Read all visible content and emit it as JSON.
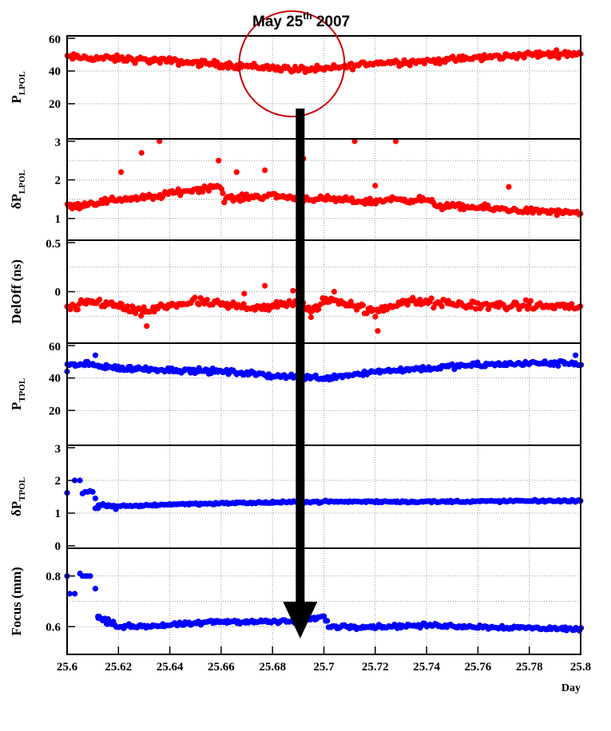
{
  "title": {
    "main": "May 25",
    "superscript": "th",
    "year": " 2007"
  },
  "chart_data": {
    "type": "scatter",
    "x_label": "Day",
    "x_range": [
      25.6,
      25.8
    ],
    "x_ticks": [
      "25.6",
      "25.62",
      "25.64",
      "25.66",
      "25.68",
      "25.7",
      "25.72",
      "25.74",
      "25.76",
      "25.78",
      "25.8"
    ],
    "highlight_marker_x": 25.69,
    "colors": {
      "lpol": "#ff0000",
      "tpol": "#0000ff",
      "arrow": "#000000",
      "circle": "#cc0000"
    },
    "grid": true,
    "panels": [
      {
        "name": "P_LPOL",
        "ylabel": "P",
        "ylabel_sub": "LPOL",
        "ylim": [
          0,
          60
        ],
        "yticks": [
          {
            "v": 20,
            "label": "20"
          },
          {
            "v": 40,
            "label": "40"
          },
          {
            "v": 60,
            "label": "60"
          }
        ],
        "grid_y": [
          20,
          40
        ],
        "color": "#ff0000",
        "trend": [
          [
            25.6,
            48.5
          ],
          [
            25.62,
            47.5
          ],
          [
            25.64,
            46
          ],
          [
            25.66,
            44
          ],
          [
            25.68,
            42
          ],
          [
            25.69,
            41
          ],
          [
            25.7,
            41
          ],
          [
            25.72,
            45
          ],
          [
            25.74,
            46
          ],
          [
            25.76,
            48
          ],
          [
            25.78,
            50
          ],
          [
            25.8,
            51
          ]
        ],
        "noise": 1.5,
        "outliers": []
      },
      {
        "name": "dP_LPOL",
        "ylabel": "δP",
        "ylabel_sub": "LPOL",
        "ylim": [
          0.5,
          3
        ],
        "yticks": [
          {
            "v": 1,
            "label": "1"
          },
          {
            "v": 2,
            "label": "2"
          },
          {
            "v": 3,
            "label": "3"
          }
        ],
        "grid_y": [
          1,
          1.5,
          2,
          2.5
        ],
        "color": "#ff0000",
        "trend": [
          [
            25.6,
            1.3
          ],
          [
            25.62,
            1.5
          ],
          [
            25.634,
            1.55
          ],
          [
            25.64,
            1.65
          ],
          [
            25.66,
            1.85
          ],
          [
            25.661,
            1.5
          ],
          [
            25.68,
            1.6
          ],
          [
            25.69,
            1.52
          ],
          [
            25.7,
            1.5
          ],
          [
            25.72,
            1.43
          ],
          [
            25.725,
            1.5
          ],
          [
            25.74,
            1.48
          ],
          [
            25.745,
            1.32
          ],
          [
            25.76,
            1.28
          ],
          [
            25.78,
            1.2
          ],
          [
            25.8,
            1.12
          ]
        ],
        "noise": 0.06,
        "outliers": [
          [
            25.621,
            2.2
          ],
          [
            25.629,
            2.7
          ],
          [
            25.636,
            3.0
          ],
          [
            25.659,
            2.5
          ],
          [
            25.666,
            2.2
          ],
          [
            25.677,
            2.25
          ],
          [
            25.692,
            2.55
          ],
          [
            25.712,
            3.0
          ],
          [
            25.72,
            1.85
          ],
          [
            25.728,
            3.0
          ],
          [
            25.772,
            1.82
          ]
        ]
      },
      {
        "name": "DelOff",
        "ylabel": "DelOff (ns)",
        "ylabel_sub": "",
        "ylim": [
          -0.5,
          0.5
        ],
        "yticks": [
          {
            "v": 0,
            "label": "0"
          },
          {
            "v": 0.5,
            "label": "0.5"
          }
        ],
        "grid_y": [
          -0.25,
          0,
          0.25
        ],
        "color": "#ff0000",
        "trend": [
          [
            25.6,
            -0.18
          ],
          [
            25.61,
            -0.1
          ],
          [
            25.62,
            -0.14
          ],
          [
            25.628,
            -0.22
          ],
          [
            25.64,
            -0.14
          ],
          [
            25.65,
            -0.1
          ],
          [
            25.66,
            -0.14
          ],
          [
            25.68,
            -0.16
          ],
          [
            25.69,
            -0.1
          ],
          [
            25.695,
            -0.22
          ],
          [
            25.7,
            -0.08
          ],
          [
            25.71,
            -0.12
          ],
          [
            25.72,
            -0.22
          ],
          [
            25.73,
            -0.1
          ],
          [
            25.76,
            -0.14
          ],
          [
            25.8,
            -0.15
          ]
        ],
        "noise": 0.035,
        "outliers": [
          [
            25.669,
            -0.02
          ],
          [
            25.677,
            0.06
          ],
          [
            25.688,
            0.01
          ],
          [
            25.695,
            -0.26
          ],
          [
            25.721,
            -0.4
          ],
          [
            25.631,
            -0.35
          ],
          [
            25.704,
            0.0
          ]
        ]
      },
      {
        "name": "P_TPOL",
        "ylabel": "P",
        "ylabel_sub": "TPOL",
        "ylim": [
          0,
          60
        ],
        "yticks": [
          {
            "v": 20,
            "label": "20"
          },
          {
            "v": 40,
            "label": "40"
          },
          {
            "v": 60,
            "label": "60"
          }
        ],
        "grid_y": [
          20,
          40
        ],
        "color": "#0000ff",
        "trend": [
          [
            25.6,
            48
          ],
          [
            25.61,
            48
          ],
          [
            25.62,
            46
          ],
          [
            25.64,
            45
          ],
          [
            25.66,
            44
          ],
          [
            25.68,
            41.5
          ],
          [
            25.7,
            40
          ],
          [
            25.72,
            44
          ],
          [
            25.74,
            46
          ],
          [
            25.76,
            48
          ],
          [
            25.78,
            49
          ],
          [
            25.8,
            49
          ]
        ],
        "noise": 1.2,
        "outliers": [
          [
            25.6,
            44
          ],
          [
            25.611,
            54
          ],
          [
            25.798,
            54
          ],
          [
            25.608,
            50
          ]
        ]
      },
      {
        "name": "dP_TPOL",
        "ylabel": "δP",
        "ylabel_sub": "TPOL",
        "ylim": [
          0,
          3
        ],
        "yticks": [
          {
            "v": 0,
            "label": "0"
          },
          {
            "v": 1,
            "label": "1"
          },
          {
            "v": 2,
            "label": "2"
          },
          {
            "v": 3,
            "label": "3"
          }
        ],
        "grid_y": [
          1,
          2
        ],
        "color": "#0000ff",
        "trend": [
          [
            25.612,
            1.25
          ],
          [
            25.62,
            1.2
          ],
          [
            25.64,
            1.27
          ],
          [
            25.66,
            1.3
          ],
          [
            25.7,
            1.35
          ],
          [
            25.74,
            1.35
          ],
          [
            25.8,
            1.38
          ]
        ],
        "noise": 0.025,
        "outliers": [
          [
            25.6,
            1.62
          ],
          [
            25.603,
            2.0
          ],
          [
            25.605,
            2.0
          ],
          [
            25.606,
            1.6
          ],
          [
            25.607,
            1.65
          ],
          [
            25.608,
            1.65
          ],
          [
            25.609,
            1.68
          ],
          [
            25.61,
            1.65
          ],
          [
            25.611,
            1.45
          ],
          [
            25.611,
            1.15
          ],
          [
            25.612,
            1.15
          ],
          [
            25.614,
            1.28
          ],
          [
            25.616,
            1.25
          ],
          [
            25.619,
            1.12
          ]
        ]
      },
      {
        "name": "Focus",
        "ylabel": "Focus (mm)",
        "ylabel_sub": "",
        "ylim": [
          0.5,
          0.9
        ],
        "yticks": [
          {
            "v": 0.6,
            "label": "0.6"
          },
          {
            "v": 0.8,
            "label": "0.8"
          }
        ],
        "grid_y": [
          0.6,
          0.7,
          0.8
        ],
        "color": "#0000ff",
        "trend": [
          [
            25.612,
            0.635
          ],
          [
            25.62,
            0.6
          ],
          [
            25.64,
            0.605
          ],
          [
            25.66,
            0.62
          ],
          [
            25.69,
            0.62
          ],
          [
            25.7,
            0.64
          ],
          [
            25.702,
            0.6
          ],
          [
            25.72,
            0.6
          ],
          [
            25.74,
            0.605
          ],
          [
            25.76,
            0.6
          ],
          [
            25.8,
            0.59
          ]
        ],
        "noise": 0.006,
        "outliers": [
          [
            25.6,
            0.8
          ],
          [
            25.601,
            0.73
          ],
          [
            25.603,
            0.73
          ],
          [
            25.605,
            0.81
          ],
          [
            25.606,
            0.8
          ],
          [
            25.607,
            0.8
          ],
          [
            25.608,
            0.8
          ],
          [
            25.609,
            0.8
          ],
          [
            25.611,
            0.75
          ],
          [
            25.612,
            0.64
          ],
          [
            25.614,
            0.63
          ],
          [
            25.616,
            0.63
          ],
          [
            25.618,
            0.62
          ]
        ]
      }
    ]
  }
}
